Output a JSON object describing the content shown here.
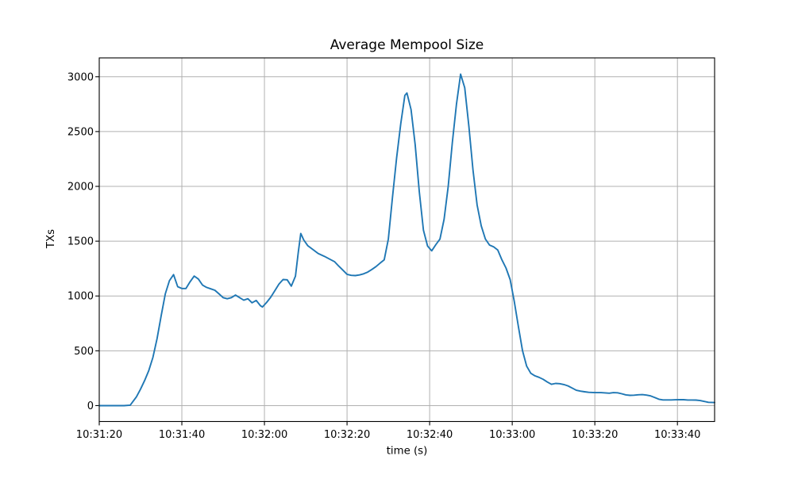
{
  "figure": {
    "background": "#ffffff"
  },
  "chart_data": {
    "type": "line",
    "title": "Average Mempool Size",
    "xlabel": "time (s)",
    "ylabel": "TXs",
    "grid": true,
    "legend": "none",
    "line_color": "#1f77b4",
    "grid_color": "#b0b0b0",
    "spine_color": "#000000",
    "x_tick_labels": [
      "10:31:20",
      "10:31:40",
      "10:32:00",
      "10:32:20",
      "10:32:40",
      "10:33:00",
      "10:33:20",
      "10:33:40"
    ],
    "x_tick_seconds": [
      0,
      20,
      40,
      60,
      80,
      100,
      120,
      140
    ],
    "x_base_time": "10:31:20",
    "xlim_seconds": [
      0,
      149
    ],
    "y_ticks": [
      0,
      500,
      1000,
      1500,
      2000,
      2500,
      3000
    ],
    "ylim": [
      -145,
      3172
    ],
    "series": [
      {
        "name": "average-mempool-size",
        "x_seconds": [
          0,
          2,
          4,
          6,
          7.5,
          9,
          10,
          11,
          12,
          13,
          14,
          15,
          16,
          17,
          18,
          19,
          20,
          21,
          22,
          23,
          24,
          25,
          26,
          27,
          28,
          29,
          30,
          31,
          32,
          33,
          34,
          35,
          36,
          37,
          38,
          39,
          39.5,
          40.5,
          41.5,
          42.5,
          43.5,
          44.5,
          45.5,
          46.5,
          47.5,
          48.2,
          48.8,
          49.5,
          50.5,
          51.5,
          53,
          54.5,
          56,
          57,
          58,
          59,
          60,
          61,
          62,
          63,
          64,
          65,
          66,
          67,
          68,
          69,
          70,
          71,
          72,
          73,
          74,
          74.5,
          75.5,
          76.5,
          77.5,
          78.5,
          79.5,
          80.5,
          81.5,
          82.5,
          83.5,
          84.5,
          85.5,
          86.5,
          87.5,
          88.5,
          89.5,
          90.5,
          91.5,
          92.5,
          93.5,
          94.5,
          95.5,
          96.5,
          97.5,
          98.5,
          99.5,
          100.5,
          101.5,
          102.5,
          103.5,
          104.5,
          105.5,
          106.5,
          107.5,
          108.5,
          109.5,
          110.5,
          111.5,
          112.5,
          113.5,
          114.5,
          115.5,
          116.5,
          117.5,
          118.5,
          119.5,
          120.5,
          121.5,
          122.5,
          123.5,
          124.5,
          125.5,
          126.5,
          127.5,
          128.5,
          129.5,
          130.5,
          131.5,
          132.5,
          133.5,
          134.5,
          135.5,
          136.5,
          137.5,
          138.5,
          139.5,
          140.5,
          141.5,
          142.5,
          143.5,
          144.5,
          145.5,
          146.5,
          147.5,
          149
        ],
        "y_txs": [
          0,
          0,
          0,
          0,
          4,
          80,
          150,
          230,
          320,
          440,
          610,
          820,
          1020,
          1140,
          1195,
          1085,
          1068,
          1068,
          1130,
          1182,
          1155,
          1100,
          1078,
          1065,
          1052,
          1020,
          985,
          975,
          985,
          1008,
          985,
          962,
          975,
          938,
          960,
          912,
          900,
          940,
          988,
          1048,
          1108,
          1150,
          1148,
          1090,
          1180,
          1400,
          1570,
          1512,
          1458,
          1430,
          1388,
          1362,
          1332,
          1312,
          1272,
          1235,
          1198,
          1188,
          1186,
          1192,
          1202,
          1218,
          1242,
          1268,
          1300,
          1330,
          1520,
          1900,
          2260,
          2570,
          2830,
          2852,
          2700,
          2380,
          1950,
          1600,
          1455,
          1412,
          1468,
          1520,
          1700,
          2000,
          2400,
          2750,
          3024,
          2900,
          2550,
          2150,
          1830,
          1640,
          1520,
          1465,
          1448,
          1420,
          1330,
          1255,
          1150,
          950,
          720,
          500,
          360,
          295,
          272,
          258,
          240,
          215,
          194,
          202,
          200,
          192,
          180,
          160,
          140,
          132,
          126,
          121,
          120,
          118,
          118,
          116,
          113,
          118,
          117,
          108,
          98,
          94,
          95,
          99,
          100,
          96,
          89,
          74,
          58,
          52,
          52,
          52,
          53,
          55,
          54,
          51,
          51,
          50,
          46,
          38,
          30,
          28
        ]
      }
    ]
  }
}
